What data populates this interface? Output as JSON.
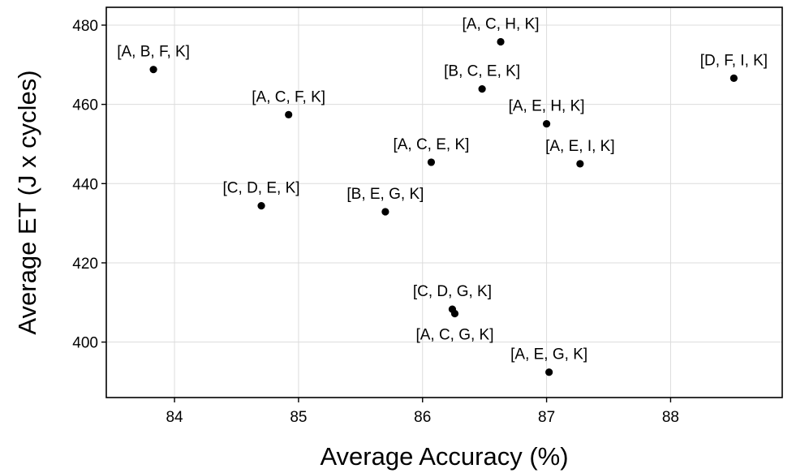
{
  "chart_data": {
    "type": "scatter",
    "title": "",
    "xlabel": "Average Accuracy (%)",
    "ylabel": "Average ET (J x cycles)",
    "xlim": [
      83.45,
      88.9
    ],
    "ylim": [
      386,
      484.5
    ],
    "xticks": [
      84,
      85,
      86,
      87,
      88
    ],
    "yticks": [
      400,
      420,
      440,
      460,
      480
    ],
    "grid": true,
    "legend": "none",
    "point_color": "#000000",
    "points": [
      {
        "label": "[A, B, F, K]",
        "x": 83.83,
        "y": 468.8,
        "label_pos": "above"
      },
      {
        "label": "[A, C, F, K]",
        "x": 84.92,
        "y": 457.4,
        "label_pos": "above"
      },
      {
        "label": "[C, D, E, K]",
        "x": 84.7,
        "y": 434.4,
        "label_pos": "above"
      },
      {
        "label": "[B, E, G, K]",
        "x": 85.7,
        "y": 432.9,
        "label_pos": "above"
      },
      {
        "label": "[A, C, E, K]",
        "x": 86.07,
        "y": 445.4,
        "label_pos": "above"
      },
      {
        "label": "[A, C, H, K]",
        "x": 86.63,
        "y": 475.8,
        "label_pos": "above"
      },
      {
        "label": "[B, C, E, K]",
        "x": 86.48,
        "y": 463.9,
        "label_pos": "above"
      },
      {
        "label": "[A, E, H, K]",
        "x": 87.0,
        "y": 455.1,
        "label_pos": "above"
      },
      {
        "label": "[A, E, I, K]",
        "x": 87.27,
        "y": 445.0,
        "label_pos": "above"
      },
      {
        "label": "[D, F, I, K]",
        "x": 88.51,
        "y": 466.6,
        "label_pos": "above"
      },
      {
        "label": "[C, D, G, K]",
        "x": 86.24,
        "y": 408.3,
        "label_pos": "above"
      },
      {
        "label": "[A, C, G, K]",
        "x": 86.26,
        "y": 407.2,
        "label_pos": "below"
      },
      {
        "label": "[A, E, G, K]",
        "x": 87.02,
        "y": 392.4,
        "label_pos": "above"
      }
    ]
  }
}
